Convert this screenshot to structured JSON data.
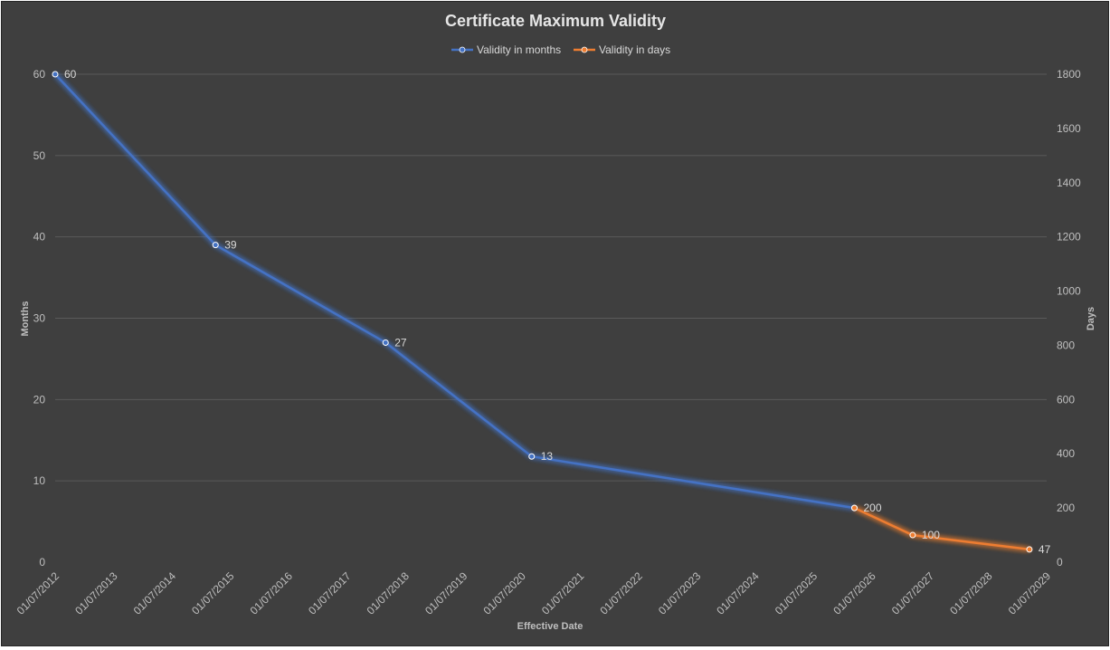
{
  "chart_data": {
    "type": "line",
    "title": "Certificate Maximum Validity",
    "xlabel": "Effective Date",
    "ylabel": "Months",
    "y2label": "Days",
    "x_ticks": [
      "01/07/2012",
      "01/07/2013",
      "01/07/2014",
      "01/07/2015",
      "01/07/2016",
      "01/07/2017",
      "01/07/2018",
      "01/07/2019",
      "01/07/2020",
      "01/07/2021",
      "01/07/2022",
      "01/07/2023",
      "01/07/2024",
      "01/07/2025",
      "01/07/2026",
      "01/07/2027",
      "01/07/2028",
      "01/07/2029"
    ],
    "x_range": [
      "2012-07-01",
      "2029-07-01"
    ],
    "ylim": [
      0,
      60
    ],
    "y_ticks": [
      "0",
      "10",
      "20",
      "30",
      "40",
      "50",
      "60"
    ],
    "y2lim": [
      0,
      1800
    ],
    "y2_ticks": [
      "0",
      "200",
      "400",
      "600",
      "800",
      "1000",
      "1200",
      "1400",
      "1600",
      "1800"
    ],
    "grid": true,
    "legend_position": "top",
    "series": [
      {
        "name": "Validity in months",
        "axis": "left",
        "color": "#4472c4",
        "points": [
          {
            "x": "2012-07-01",
            "y": 60,
            "label": "60"
          },
          {
            "x": "2015-04-01",
            "y": 39,
            "label": "39"
          },
          {
            "x": "2018-03-01",
            "y": 27,
            "label": "27"
          },
          {
            "x": "2020-09-01",
            "y": 13,
            "label": "13"
          },
          {
            "x": "2026-03-15",
            "y": 6.67,
            "label": ""
          }
        ]
      },
      {
        "name": "Validity in days",
        "axis": "right",
        "color": "#ed7d31",
        "points": [
          {
            "x": "2026-03-15",
            "y": 200,
            "label": "200"
          },
          {
            "x": "2027-03-15",
            "y": 100,
            "label": "100"
          },
          {
            "x": "2029-03-15",
            "y": 47,
            "label": "47"
          }
        ]
      }
    ]
  }
}
